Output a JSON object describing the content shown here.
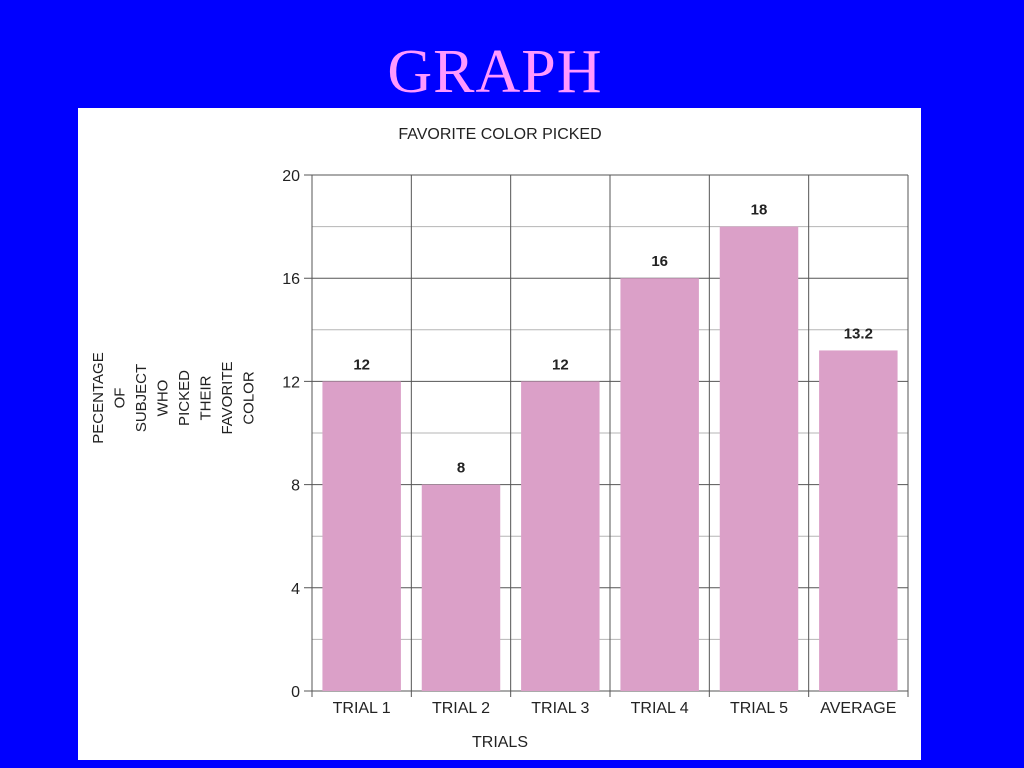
{
  "slide": {
    "title": "GRAPH"
  },
  "chart_data": {
    "type": "bar",
    "title": "FAVORITE COLOR PICKED",
    "xlabel": "TRIALS",
    "ylabel_lines": [
      "PECENTAGE",
      "OF",
      "SUBJECT",
      "WHO",
      "PICKED",
      "THEIR",
      "FAVORITE",
      "COLOR"
    ],
    "categories": [
      "TRIAL 1",
      "TRIAL 2",
      "TRIAL 3",
      "TRIAL 4",
      "TRIAL 5",
      "AVERAGE"
    ],
    "values": [
      12,
      8,
      12,
      16,
      18,
      13.2
    ],
    "data_labels": [
      "12",
      "8",
      "12",
      "16",
      "18",
      "13.2"
    ],
    "ylim": [
      0,
      20
    ],
    "y_ticks": [
      0,
      4,
      8,
      12,
      16,
      20
    ],
    "y_minor_step": 2,
    "grid": true,
    "bar_color": "#dba0c8"
  }
}
